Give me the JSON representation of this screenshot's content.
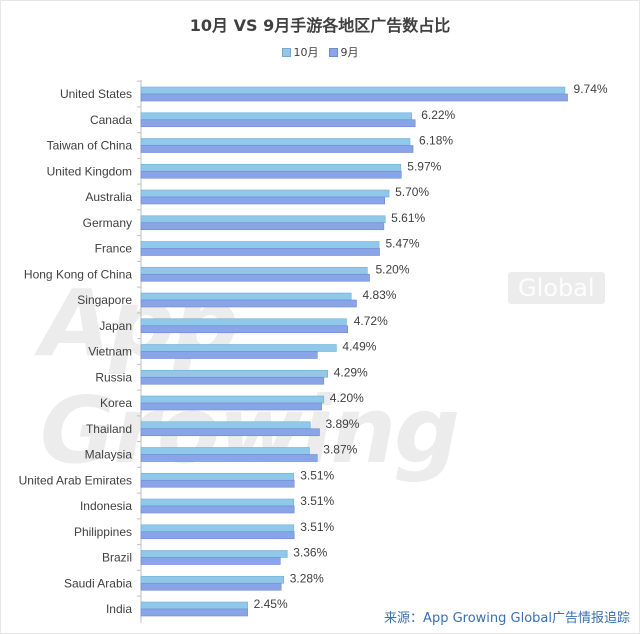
{
  "chart_data": {
    "type": "bar",
    "orientation": "horizontal",
    "title": "10月 VS 9月手游各地区广告数占比",
    "categories": [
      "United States",
      "Canada",
      "Taiwan of China",
      "United Kingdom",
      "Australia",
      "Germany",
      "France",
      "Hong Kong of China",
      "Singapore",
      "Japan",
      "Vietnam",
      "Russia",
      "Korea",
      "Thailand",
      "Malaysia",
      "United Arab Emirates",
      "Indonesia",
      "Philippines",
      "Brazil",
      "Saudi Arabia",
      "India"
    ],
    "series": [
      {
        "name": "10月",
        "color": "#8fc8e8",
        "values": [
          9.74,
          6.22,
          6.18,
          5.97,
          5.7,
          5.61,
          5.47,
          5.2,
          4.83,
          4.72,
          4.49,
          4.29,
          4.2,
          3.89,
          3.87,
          3.51,
          3.51,
          3.51,
          3.36,
          3.28,
          2.45
        ]
      },
      {
        "name": "9月",
        "color": "#8aa4e8",
        "values": [
          9.8,
          6.3,
          6.25,
          5.98,
          5.6,
          5.58,
          5.48,
          5.25,
          4.95,
          4.75,
          4.05,
          4.2,
          4.15,
          4.1,
          4.05,
          3.52,
          3.52,
          3.52,
          3.2,
          3.22,
          2.45
        ]
      }
    ],
    "data_labels": [
      "9.74%",
      "6.22%",
      "6.18%",
      "5.97%",
      "5.70%",
      "5.61%",
      "5.47%",
      "5.20%",
      "4.83%",
      "4.72%",
      "4.49%",
      "4.29%",
      "4.20%",
      "3.89%",
      "3.87%",
      "3.51%",
      "3.51%",
      "3.51%",
      "3.36%",
      "3.28%",
      "2.45%"
    ],
    "xlim": [
      0,
      10.5
    ],
    "legend_position": "top",
    "grid": false
  },
  "watermark": {
    "text": "App Growing",
    "badge": "Global"
  },
  "source": "来源：App Growing Global广告情报追踪"
}
